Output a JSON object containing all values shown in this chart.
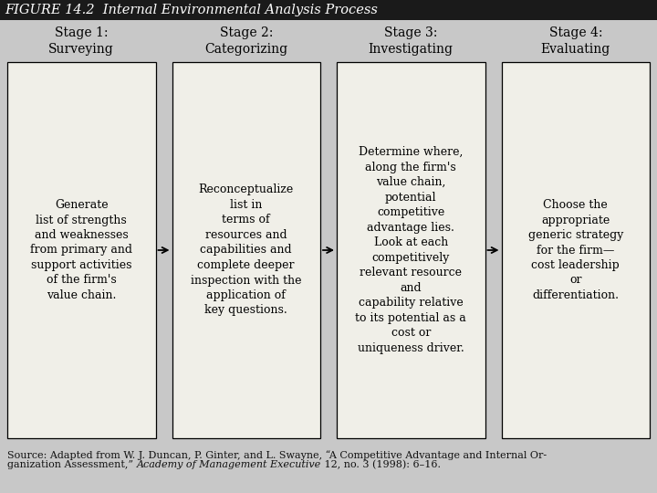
{
  "title": "FIGURE 14.2  Internal Environmental Analysis Process",
  "title_bg": "#1a1a1a",
  "title_color": "#ffffff",
  "bg_color": "#c8c8c8",
  "box_bg": "#f0efe8",
  "box_edge": "#000000",
  "stages": [
    "Stage 1:\nSurveying",
    "Stage 2:\nCategorizing",
    "Stage 3:\nInvestigating",
    "Stage 4:\nEvaluating"
  ],
  "contents": [
    "Generate\nlist of strengths\nand weaknesses\nfrom primary and\nsupport activities\nof the firm's\nvalue chain.",
    "Reconceptualize\nlist in\nterms of\nresources and\ncapabilities and\ncomplete deeper\ninspection with the\napplication of\nkey questions.",
    "Determine where,\nalong the firm's\nvalue chain,\npotential\ncompetitive\nadvantage lies.\nLook at each\ncompetitively\nrelevant resource\nand\ncapability relative\nto its potential as a\ncost or\nuniqueness driver.",
    "Choose the\nappropriate\ngeneric strategy\nfor the firm—\ncost leadership\nor\ndifferentiation."
  ],
  "source_line1": "Source: Adapted from W. J. Duncan, P. Ginter, and L. Swayne, “A Competitive Advantage and Internal Or-",
  "source_line2_pre": "ganization Assessment,” ",
  "source_line2_italic": "Academy of Management Executive",
  "source_line2_post": " 12, no. 3 (1998): 6–16.",
  "arrow_color": "#000000",
  "title_fontsize": 10.5,
  "stage_fontsize": 10,
  "content_fontsize": 9,
  "source_fontsize": 8
}
